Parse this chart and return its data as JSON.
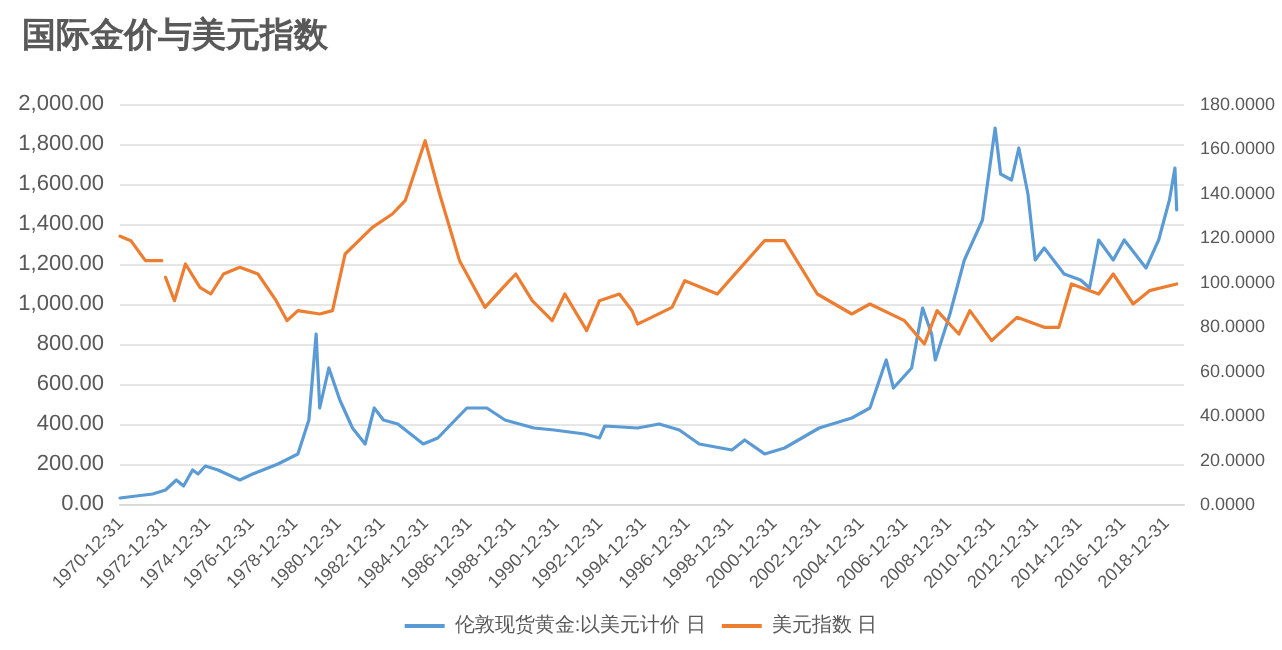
{
  "chart_data": {
    "type": "line",
    "title": "国际金价与美元指数",
    "xlim": [
      "1970-12-31",
      "2019-10-31"
    ],
    "xticks": [
      "1970-12-31",
      "1972-12-31",
      "1974-12-31",
      "1976-12-31",
      "1978-12-31",
      "1980-12-31",
      "1982-12-31",
      "1984-12-31",
      "1986-12-31",
      "1988-12-31",
      "1990-12-31",
      "1992-12-31",
      "1994-12-31",
      "1996-12-31",
      "1998-12-31",
      "2000-12-31",
      "2002-12-31",
      "2004-12-31",
      "2006-12-31",
      "2008-12-31",
      "2010-12-31",
      "2012-12-31",
      "2014-12-31",
      "2016-12-31",
      "2018-12-31"
    ],
    "ylim": [
      0,
      2000
    ],
    "yticks": [
      {
        "value": 0,
        "label": "0.00"
      },
      {
        "value": 200,
        "label": "200.00"
      },
      {
        "value": 400,
        "label": "400.00"
      },
      {
        "value": 600,
        "label": "600.00"
      },
      {
        "value": 800,
        "label": "800.00"
      },
      {
        "value": 1000,
        "label": "1,000.00"
      },
      {
        "value": 1200,
        "label": "1,200.00"
      },
      {
        "value": 1400,
        "label": "1,400.00"
      },
      {
        "value": 1600,
        "label": "1,600.00"
      },
      {
        "value": 1800,
        "label": "1,800.00"
      },
      {
        "value": 2000,
        "label": "2,000.00"
      }
    ],
    "y2lim": [
      0,
      180
    ],
    "y2ticks": [
      {
        "value": 0,
        "label": "0.0000"
      },
      {
        "value": 20,
        "label": "20.0000"
      },
      {
        "value": 40,
        "label": "40.0000"
      },
      {
        "value": 60,
        "label": "60.0000"
      },
      {
        "value": 80,
        "label": "80.0000"
      },
      {
        "value": 100,
        "label": "100.0000"
      },
      {
        "value": 120,
        "label": "120.0000"
      },
      {
        "value": 140,
        "label": "140.0000"
      },
      {
        "value": 160,
        "label": "160.0000"
      },
      {
        "value": 180,
        "label": "180.0000"
      }
    ],
    "grid": "y",
    "legend": "bottom",
    "line_style": "solid",
    "series": [
      {
        "name": "伦敦现货黄金:以美元计价 日",
        "color": "#5b9bd5",
        "x": [
          "1971-01",
          "1972-07",
          "1973-02",
          "1973-08",
          "1973-12",
          "1974-05",
          "1974-08",
          "1974-12",
          "1975-07",
          "1976-07",
          "1977-02",
          "1978-04",
          "1979-03",
          "1979-09",
          "1980-01",
          "1980-03",
          "1980-08",
          "1981-02",
          "1981-09",
          "1982-04",
          "1982-09",
          "1983-02",
          "1983-10",
          "1984-12",
          "1985-08",
          "1986-12",
          "1987-11",
          "1988-09",
          "1990-01",
          "1990-12",
          "1992-05",
          "1993-01",
          "1993-04",
          "1994-10",
          "1995-10",
          "1996-09",
          "1997-08",
          "1999-02",
          "1999-09",
          "2000-08",
          "2001-07",
          "2003-02",
          "2004-08",
          "2005-06",
          "2006-03",
          "2006-07",
          "2007-05",
          "2007-11",
          "2008-04",
          "2008-06",
          "2009-02",
          "2009-10",
          "2010-08",
          "2011-03",
          "2011-06",
          "2011-12",
          "2012-04",
          "2012-09",
          "2013-01",
          "2013-06",
          "2014-05",
          "2015-02",
          "2015-07",
          "2015-12",
          "2016-08",
          "2017-02",
          "2018-02",
          "2018-09",
          "2019-03",
          "2019-06",
          "2019-07"
        ],
        "values": [
          30,
          50,
          70,
          120,
          90,
          170,
          150,
          190,
          170,
          120,
          150,
          200,
          250,
          420,
          850,
          480,
          680,
          520,
          380,
          300,
          480,
          420,
          400,
          300,
          330,
          480,
          480,
          420,
          380,
          370,
          350,
          330,
          390,
          380,
          400,
          370,
          300,
          270,
          320,
          250,
          280,
          380,
          430,
          480,
          720,
          580,
          680,
          980,
          850,
          720,
          950,
          1220,
          1420,
          1880,
          1650,
          1620,
          1780,
          1550,
          1220,
          1280,
          1150,
          1120,
          1080,
          1320,
          1220,
          1320,
          1180,
          1320,
          1520,
          1680,
          1470
        ]
      },
      {
        "name": "美元指数 日",
        "color": "#ed7d31",
        "axis": "y2",
        "x": [
          "1971-01",
          "1971-07",
          "1972-03",
          "1972-12",
          "1973-01",
          "1973-02",
          "1973-07",
          "1974-01",
          "1974-09",
          "1975-03",
          "1975-10",
          "1976-07",
          "1977-05",
          "1978-03",
          "1978-09",
          "1979-03",
          "1980-03",
          "1980-10",
          "1981-05",
          "1982-08",
          "1983-07",
          "1984-02",
          "1985-01",
          "1985-09",
          "1986-08",
          "1987-10",
          "1988-08",
          "1989-03",
          "1989-12",
          "1990-11",
          "1991-06",
          "1992-06",
          "1993-01",
          "1993-12",
          "1994-07",
          "1994-10",
          "1995-02",
          "1996-05",
          "1996-12",
          "1998-06",
          "1999-02",
          "2000-08",
          "2001-07",
          "2003-01",
          "2004-08",
          "2005-06",
          "2007-01",
          "2007-12",
          "2008-07",
          "2009-07",
          "2010-01",
          "2011-01",
          "2012-03",
          "2013-06",
          "2014-02",
          "2014-09",
          "2015-12",
          "2016-08",
          "2017-07",
          "2018-04",
          "2019-07"
        ],
        "values": [
          120.5,
          118.5,
          109.5,
          109.5,
          null,
          102,
          91.5,
          108,
          97.5,
          94.5,
          103.5,
          106.5,
          103.5,
          91.5,
          82.5,
          87,
          85.5,
          87,
          112.5,
          124.5,
          130.5,
          136.5,
          163.5,
          139.5,
          109.5,
          88.5,
          97.5,
          103.5,
          91.5,
          82.5,
          94.5,
          78,
          91.5,
          94.5,
          87,
          81,
          82.5,
          88.5,
          100.5,
          94.5,
          102,
          118.5,
          118.5,
          94.5,
          85.5,
          90,
          82.5,
          72,
          87,
          76.5,
          87,
          73.5,
          84,
          79.5,
          79.5,
          99,
          94.5,
          103.5,
          90,
          96,
          99
        ]
      }
    ]
  }
}
